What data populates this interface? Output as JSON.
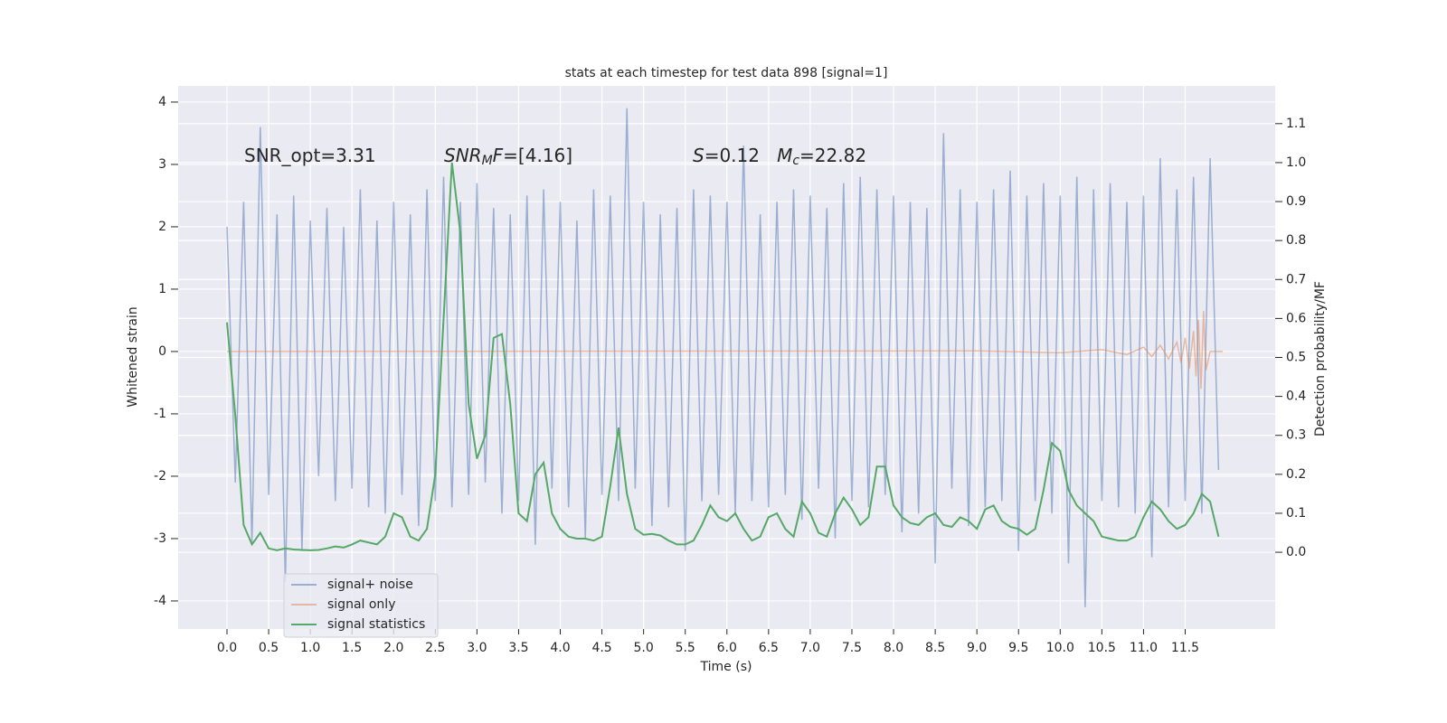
{
  "chart_data": {
    "type": "line",
    "title": "stats at each timestep for test data 898 [signal=1]",
    "x_label": "Time (s)",
    "y_label": "Whitened strain",
    "y2_label": "Detection probability/MF",
    "grid": true,
    "legend": "lower left",
    "xlim": [
      -0.586,
      12.58
    ],
    "ylim": [
      -4.45,
      4.26
    ],
    "y2lim": [
      -0.197,
      1.197
    ],
    "xticks": [
      {
        "value": 0,
        "label": "0.0"
      },
      {
        "value": 0.5,
        "label": "0.5"
      },
      {
        "value": 1,
        "label": "1.0"
      },
      {
        "value": 1.5,
        "label": "1.5"
      },
      {
        "value": 2,
        "label": "2.0"
      },
      {
        "value": 2.5,
        "label": "2.5"
      },
      {
        "value": 3,
        "label": "3.0"
      },
      {
        "value": 3.5,
        "label": "3.5"
      },
      {
        "value": 4,
        "label": "4.0"
      },
      {
        "value": 4.5,
        "label": "4.5"
      },
      {
        "value": 5,
        "label": "5.0"
      },
      {
        "value": 5.5,
        "label": "5.5"
      },
      {
        "value": 6,
        "label": "6.0"
      },
      {
        "value": 6.5,
        "label": "6.5"
      },
      {
        "value": 7,
        "label": "7.0"
      },
      {
        "value": 7.5,
        "label": "7.5"
      },
      {
        "value": 8,
        "label": "8.0"
      },
      {
        "value": 8.5,
        "label": "8.5"
      },
      {
        "value": 9,
        "label": "9.0"
      },
      {
        "value": 9.5,
        "label": "9.5"
      },
      {
        "value": 10,
        "label": "10.0"
      },
      {
        "value": 10.5,
        "label": "10.5"
      },
      {
        "value": 11,
        "label": "11.0"
      },
      {
        "value": 11.5,
        "label": "11.5"
      }
    ],
    "yticks": [
      -4,
      -3,
      -2,
      -1,
      0,
      1,
      2,
      3,
      4
    ],
    "y2ticks": [
      {
        "value": 0,
        "label": "0.0"
      },
      {
        "value": 0.1,
        "label": "0.1"
      },
      {
        "value": 0.2,
        "label": "0.2"
      },
      {
        "value": 0.3,
        "label": "0.3"
      },
      {
        "value": 0.4,
        "label": "0.4"
      },
      {
        "value": 0.5,
        "label": "0.5"
      },
      {
        "value": 0.6,
        "label": "0.6"
      },
      {
        "value": 0.7,
        "label": "0.7"
      },
      {
        "value": 0.8,
        "label": "0.8"
      },
      {
        "value": 0.9,
        "label": "0.9"
      },
      {
        "value": 1,
        "label": "1.0"
      },
      {
        "value": 1.1,
        "label": "1.1"
      }
    ],
    "annotations": [
      {
        "segments": [
          {
            "text": "SNR_opt=3.31"
          }
        ]
      },
      {
        "segments": [
          {
            "text": "SNR",
            "italic": true
          },
          {
            "text": "M",
            "italic": true,
            "sub": true
          },
          {
            "text": "F",
            "italic": true
          },
          {
            "text": "=[4.16]"
          }
        ]
      },
      {
        "segments": [
          {
            "text": "S",
            "italic": true
          },
          {
            "text": "=0.12   "
          },
          {
            "text": "M",
            "italic": true
          },
          {
            "text": "c",
            "italic": true,
            "sub": true
          },
          {
            "text": "=22.82"
          }
        ]
      }
    ],
    "x": [
      0.0,
      0.1,
      0.2,
      0.3,
      0.4,
      0.5,
      0.6,
      0.7,
      0.8,
      0.9,
      1.0,
      1.1,
      1.2,
      1.3,
      1.4,
      1.5,
      1.6,
      1.7,
      1.8,
      1.9,
      2.0,
      2.1,
      2.2,
      2.3,
      2.4,
      2.5,
      2.6,
      2.7,
      2.8,
      2.9,
      3.0,
      3.1,
      3.2,
      3.3,
      3.4,
      3.5,
      3.6,
      3.7,
      3.8,
      3.9,
      4.0,
      4.1,
      4.2,
      4.3,
      4.4,
      4.5,
      4.6,
      4.7,
      4.8,
      4.9,
      5.0,
      5.1,
      5.2,
      5.3,
      5.4,
      5.5,
      5.6,
      5.7,
      5.8,
      5.9,
      6.0,
      6.1,
      6.2,
      6.3,
      6.4,
      6.5,
      6.6,
      6.7,
      6.8,
      6.9,
      7.0,
      7.1,
      7.2,
      7.3,
      7.4,
      7.5,
      7.6,
      7.7,
      7.8,
      7.9,
      8.0,
      8.1,
      8.2,
      8.3,
      8.4,
      8.5,
      8.6,
      8.7,
      8.8,
      8.9,
      9.0,
      9.1,
      9.2,
      9.3,
      9.4,
      9.5,
      9.6,
      9.7,
      9.8,
      9.9,
      10.0,
      10.1,
      10.2,
      10.3,
      10.4,
      10.5,
      10.6,
      10.7,
      10.8,
      10.9,
      11.0,
      11.1,
      11.2,
      11.3,
      11.4,
      11.5,
      11.6,
      11.7,
      11.8,
      11.9
    ],
    "series": [
      {
        "name": "signal+ noise",
        "color": "#4c72b0",
        "opacity": 0.5,
        "values": [
          2.0,
          -2.1,
          2.4,
          -3.1,
          3.6,
          -2.3,
          2.2,
          -3.7,
          2.5,
          -3.2,
          2.1,
          -2.0,
          2.3,
          -2.4,
          2.0,
          -2.2,
          2.6,
          -2.5,
          2.1,
          -2.6,
          2.4,
          -2.3,
          2.2,
          -2.8,
          2.6,
          -2.4,
          2.8,
          -2.5,
          2.4,
          -2.3,
          2.7,
          -2.1,
          2.3,
          -2.6,
          2.2,
          -2.4,
          2.5,
          -3.1,
          2.6,
          -2.2,
          2.4,
          -2.5,
          2.1,
          -3.0,
          2.6,
          -2.3,
          2.5,
          -2.4,
          3.9,
          -2.2,
          2.4,
          -2.8,
          2.2,
          -2.5,
          2.3,
          -3.2,
          2.6,
          -2.4,
          2.5,
          -2.3,
          2.4,
          -2.6,
          3.3,
          -2.4,
          2.2,
          -2.5,
          2.4,
          -2.3,
          2.6,
          -2.7,
          2.5,
          -2.2,
          2.3,
          -3.0,
          2.7,
          -2.4,
          2.8,
          -2.5,
          2.6,
          -2.3,
          2.5,
          -2.9,
          2.4,
          -2.6,
          2.3,
          -3.4,
          3.5,
          -2.2,
          2.6,
          -2.8,
          2.4,
          -2.5,
          2.6,
          -2.4,
          2.9,
          -3.2,
          2.5,
          -2.4,
          2.7,
          -2.6,
          2.5,
          -3.4,
          2.8,
          -4.1,
          2.6,
          -2.4,
          2.7,
          -2.5,
          2.4,
          -2.6,
          2.5,
          -3.3,
          3.1,
          -2.5,
          2.6,
          -2.4,
          2.8,
          -2.6,
          3.1,
          -1.9
        ]
      },
      {
        "name": "signal only",
        "color": "#dd8452",
        "opacity": 0.5,
        "x": [
          0.0,
          9.0,
          10.0,
          10.5,
          10.8,
          11.0,
          11.1,
          11.2,
          11.3,
          11.4,
          11.45,
          11.5,
          11.55,
          11.6,
          11.63,
          11.66,
          11.69,
          11.72,
          11.75,
          11.8,
          11.95
        ],
        "values": [
          0,
          0.01,
          -0.02,
          0.03,
          -0.05,
          0.07,
          -0.08,
          0.1,
          -0.12,
          0.15,
          -0.18,
          0.22,
          -0.27,
          0.33,
          -0.4,
          0.5,
          -0.6,
          0.65,
          -0.3,
          0,
          0
        ]
      },
      {
        "name": "signal statistics",
        "color": "#55a868",
        "opacity": 1,
        "axis": "y2",
        "values": [
          0.59,
          0.35,
          0.07,
          0.02,
          0.05,
          0.01,
          0.005,
          0.01,
          0.007,
          0.006,
          0.005,
          0.006,
          0.01,
          0.015,
          0.012,
          0.02,
          0.03,
          0.025,
          0.02,
          0.04,
          0.1,
          0.09,
          0.04,
          0.03,
          0.06,
          0.2,
          0.6,
          1.0,
          0.82,
          0.38,
          0.24,
          0.3,
          0.55,
          0.56,
          0.38,
          0.1,
          0.08,
          0.2,
          0.23,
          0.1,
          0.06,
          0.04,
          0.035,
          0.035,
          0.03,
          0.04,
          0.17,
          0.32,
          0.15,
          0.06,
          0.045,
          0.047,
          0.043,
          0.03,
          0.02,
          0.02,
          0.03,
          0.07,
          0.12,
          0.09,
          0.08,
          0.1,
          0.06,
          0.03,
          0.04,
          0.09,
          0.1,
          0.06,
          0.04,
          0.13,
          0.1,
          0.05,
          0.04,
          0.1,
          0.14,
          0.11,
          0.07,
          0.09,
          0.22,
          0.22,
          0.12,
          0.09,
          0.075,
          0.07,
          0.09,
          0.1,
          0.07,
          0.065,
          0.09,
          0.08,
          0.06,
          0.11,
          0.12,
          0.08,
          0.065,
          0.06,
          0.045,
          0.06,
          0.16,
          0.28,
          0.26,
          0.16,
          0.12,
          0.1,
          0.08,
          0.04,
          0.035,
          0.03,
          0.03,
          0.04,
          0.09,
          0.13,
          0.11,
          0.08,
          0.06,
          0.07,
          0.1,
          0.15,
          0.13,
          0.04
        ]
      }
    ]
  }
}
